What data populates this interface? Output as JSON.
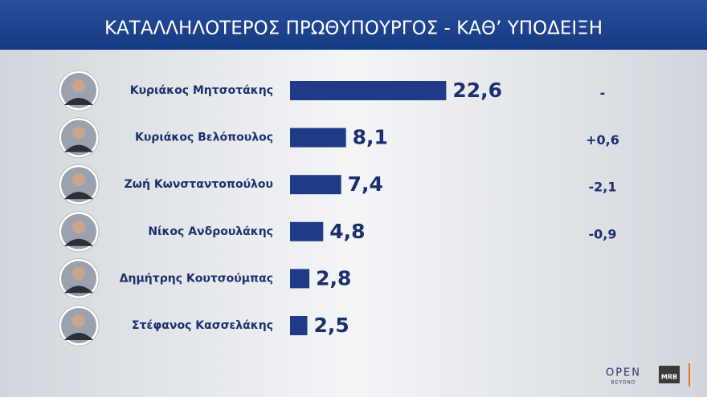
{
  "chart_data": {
    "type": "bar",
    "orientation": "horizontal",
    "title": "ΚΑΤΑΛΛΗΛΟΤΕΡΟΣ  ΠΡΩΘΥΠΟΥΡΓΟΣ - ΚΑΘ’ ΥΠΟΔΕΙΞΗ",
    "categories": [
      "Κυριάκος Μητσοτάκης",
      "Κυριάκος Βελόπουλος",
      "Ζωή Κωνσταντοπούλου",
      "Νίκος Ανδρουλάκης",
      "Δημήτρης Κουτσούμπας",
      "Στέφανος Κασσελάκης"
    ],
    "values": [
      22.6,
      8.1,
      7.4,
      4.8,
      2.8,
      2.5
    ],
    "value_labels": [
      "22,6",
      "8,1",
      "7,4",
      "4,8",
      "2,8",
      "2,5"
    ],
    "change_labels": [
      "-",
      "+0,6",
      "-2,1",
      "-0,9",
      null,
      null
    ],
    "color": "#1f3a87"
  },
  "branding": {
    "channel": "OPEN",
    "tagline": "BEYOND",
    "pollster": "MRB"
  }
}
